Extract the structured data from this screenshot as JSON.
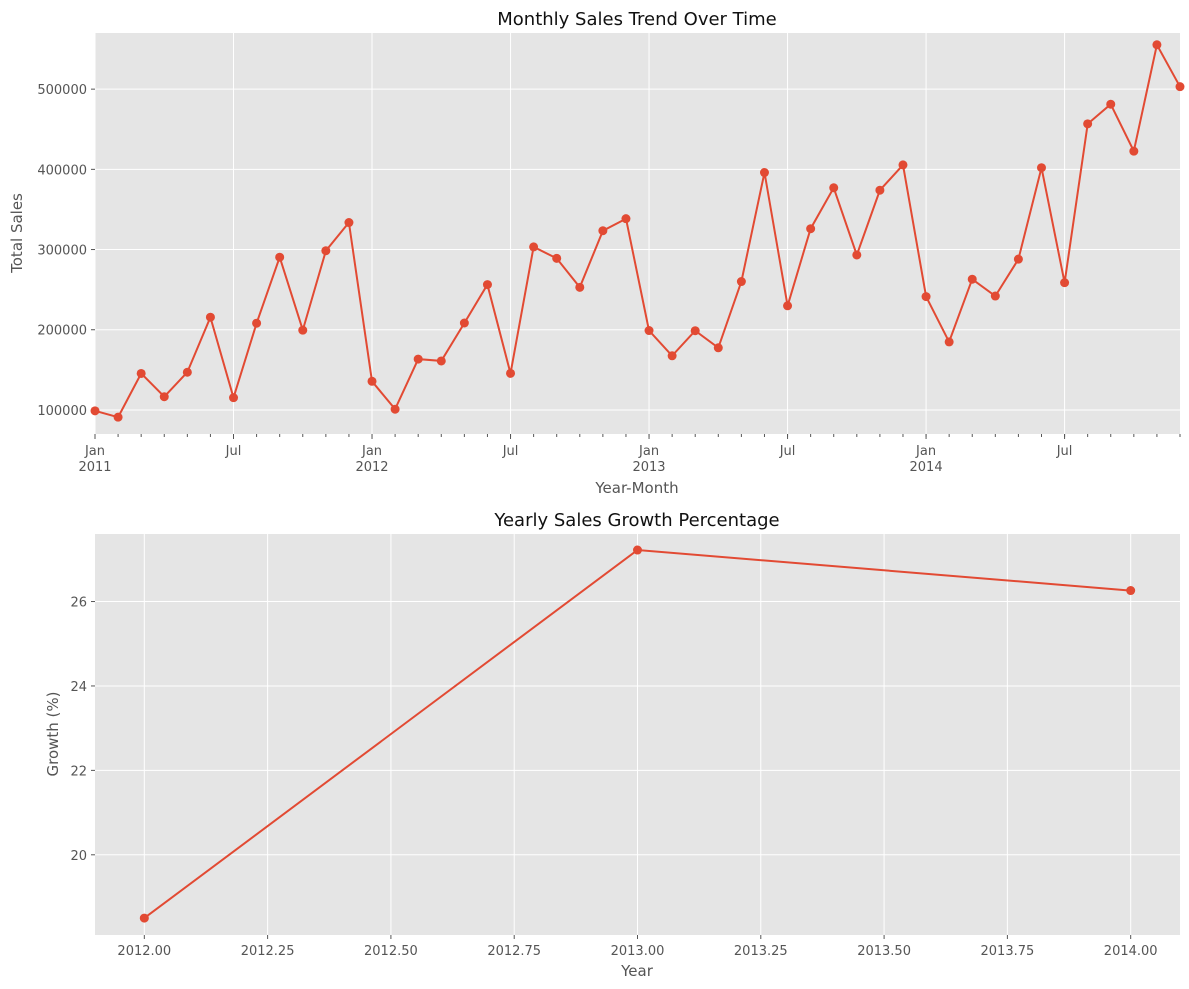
{
  "chart_data": [
    {
      "type": "line",
      "title": "Monthly Sales Trend Over Time",
      "xlabel": "Year-Month",
      "ylabel": "Total Sales",
      "grid": true,
      "ylim": [
        70000,
        570000
      ],
      "y_ticks": [
        100000,
        200000,
        300000,
        400000,
        500000
      ],
      "y_tick_labels": [
        "100000",
        "200000",
        "300000",
        "400000",
        "500000"
      ],
      "x": [
        "2011-01",
        "2011-02",
        "2011-03",
        "2011-04",
        "2011-05",
        "2011-06",
        "2011-07",
        "2011-08",
        "2011-09",
        "2011-10",
        "2011-11",
        "2011-12",
        "2012-01",
        "2012-02",
        "2012-03",
        "2012-04",
        "2012-05",
        "2012-06",
        "2012-07",
        "2012-08",
        "2012-09",
        "2012-10",
        "2012-11",
        "2012-12",
        "2013-01",
        "2013-02",
        "2013-03",
        "2013-04",
        "2013-05",
        "2013-06",
        "2013-07",
        "2013-08",
        "2013-09",
        "2013-10",
        "2013-11",
        "2013-12",
        "2014-01",
        "2014-02",
        "2014-03",
        "2014-04",
        "2014-05",
        "2014-06",
        "2014-07",
        "2014-08",
        "2014-09",
        "2014-10",
        "2014-11",
        "2014-12"
      ],
      "series": [
        {
          "values": [
            98900,
            91000,
            145500,
            116500,
            147000,
            215600,
            115300,
            208100,
            290400,
            199500,
            298500,
            333700,
            135700,
            100900,
            163400,
            161100,
            208400,
            256300,
            145600,
            303300,
            289000,
            252900,
            323500,
            338500,
            199000,
            167500,
            198800,
            177500,
            260100,
            396000,
            229900,
            326000,
            377000,
            293200,
            374000,
            405500,
            241300,
            184800,
            263000,
            242000,
            288000,
            402000,
            258700,
            456700,
            481200,
            422700,
            555300,
            503100
          ]
        }
      ],
      "x_major_ticks": [
        {
          "date": "2011-01",
          "label": "Jan",
          "year": "2011"
        },
        {
          "date": "2011-07",
          "label": "Jul",
          "year": ""
        },
        {
          "date": "2012-01",
          "label": "Jan",
          "year": "2012"
        },
        {
          "date": "2012-07",
          "label": "Jul",
          "year": ""
        },
        {
          "date": "2013-01",
          "label": "Jan",
          "year": "2013"
        },
        {
          "date": "2013-07",
          "label": "Jul",
          "year": ""
        },
        {
          "date": "2014-01",
          "label": "Jan",
          "year": "2014"
        },
        {
          "date": "2014-07",
          "label": "Jul",
          "year": ""
        }
      ],
      "x_range": [
        "2011-01",
        "2014-12"
      ]
    },
    {
      "type": "line",
      "title": "Yearly Sales Growth Percentage",
      "xlabel": "Year",
      "ylabel": "Growth (%)",
      "grid": true,
      "xlim": [
        2011.9,
        2014.1
      ],
      "ylim": [
        18.1,
        27.6
      ],
      "x": [
        2012,
        2013,
        2014
      ],
      "series": [
        {
          "values": [
            18.5,
            27.22,
            26.26
          ]
        }
      ],
      "x_ticks": [
        2012.0,
        2012.25,
        2012.5,
        2012.75,
        2013.0,
        2013.25,
        2013.5,
        2013.75,
        2014.0
      ],
      "x_tick_labels": [
        "2012.00",
        "2012.25",
        "2012.50",
        "2012.75",
        "2013.00",
        "2013.25",
        "2013.50",
        "2013.75",
        "2014.00"
      ],
      "y_ticks": [
        20,
        22,
        24,
        26
      ],
      "y_tick_labels": [
        "20",
        "22",
        "24",
        "26"
      ]
    }
  ],
  "colors": {
    "series": "#e24a33",
    "plot_background": "#e5e5e5",
    "grid": "#ffffff"
  }
}
